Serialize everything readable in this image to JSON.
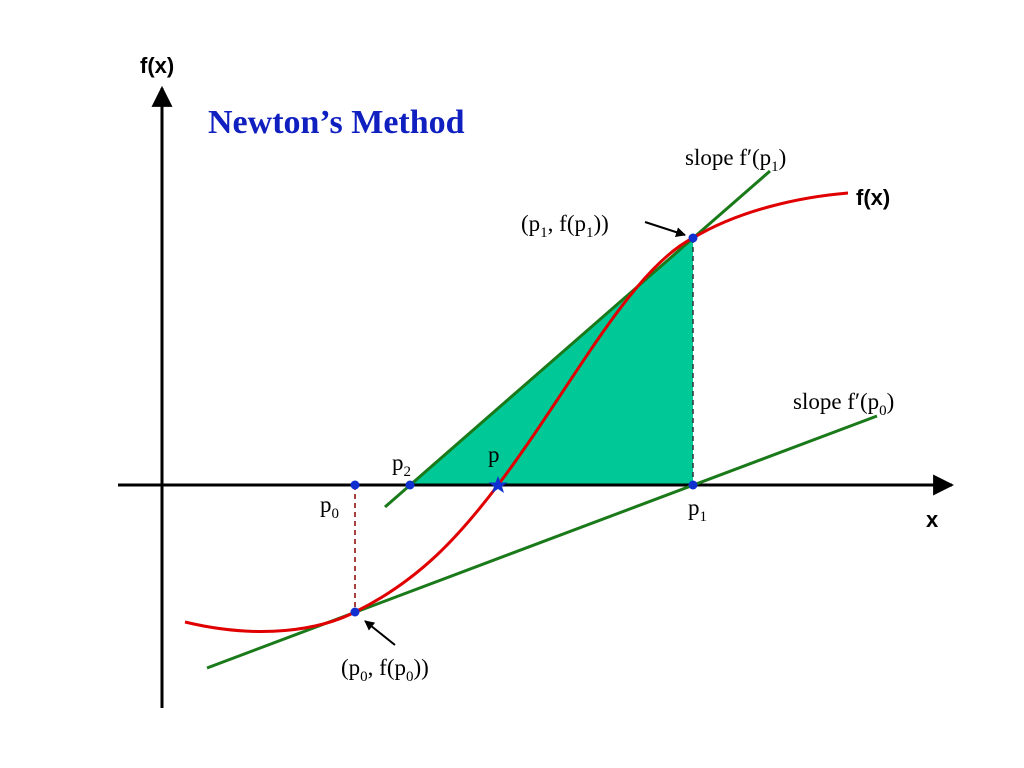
{
  "title": "Newton’s Method",
  "axes": {
    "y_label": "f(x)",
    "x_label": "x"
  },
  "curve_label": "f(x)",
  "labels": [
    {
      "name": "tangent-p1-label",
      "parts": [
        "slope f′(p",
        "1",
        ")"
      ]
    },
    {
      "name": "point-p1-label",
      "parts": [
        "(p",
        "1",
        ", f(p",
        "1",
        "))"
      ]
    },
    {
      "name": "tangent-p0-label",
      "parts": [
        "slope f′(p",
        "0",
        ")"
      ]
    },
    {
      "name": "p2-label",
      "parts": [
        "p",
        "2"
      ]
    },
    {
      "name": "root-label",
      "parts": [
        "p"
      ]
    },
    {
      "name": "p0-label",
      "parts": [
        "p",
        "0"
      ]
    },
    {
      "name": "p1-label",
      "parts": [
        "p",
        "1"
      ]
    },
    {
      "name": "point-p0-label",
      "parts": [
        "(p",
        "0",
        ", f(p",
        "0",
        "))"
      ]
    }
  ]
}
